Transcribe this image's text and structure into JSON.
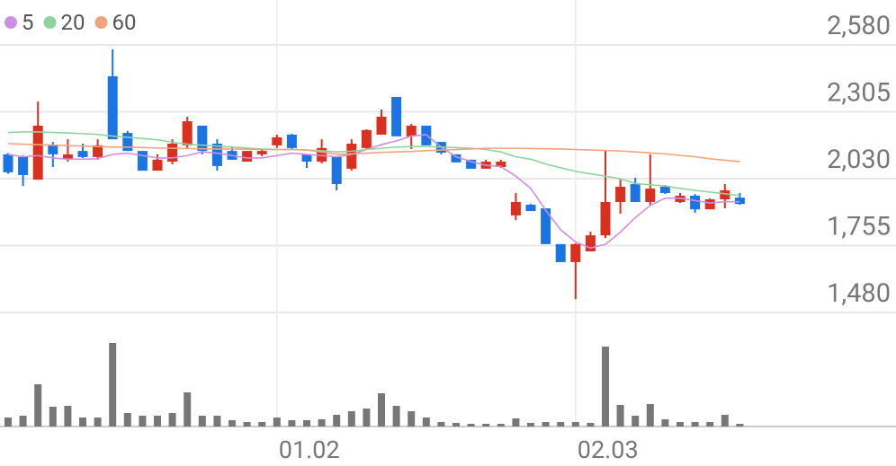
{
  "chart_data": {
    "type": "candlestick",
    "categories": [
      null,
      null,
      null,
      null,
      null,
      null,
      null,
      null,
      null,
      null,
      null,
      null,
      null,
      null,
      null,
      null,
      null,
      null,
      "01.02",
      null,
      null,
      null,
      null,
      null,
      null,
      null,
      null,
      null,
      null,
      null,
      null,
      null,
      null,
      null,
      null,
      null,
      null,
      null,
      "02.03",
      null,
      null,
      null,
      null,
      null,
      null,
      null,
      null,
      null,
      null,
      null
    ],
    "open": [
      2130,
      2119,
      2026,
      2167,
      2111,
      2144,
      2119,
      2451,
      2218,
      2144,
      2063,
      2100,
      2167,
      2248,
      2174,
      2144,
      2100,
      2130,
      2167,
      2211,
      2130,
      2100,
      2119,
      2071,
      2156,
      2211,
      2366,
      2204,
      2248,
      2181,
      2130,
      2108,
      2071,
      2078,
      1879,
      1923,
      1908,
      1761,
      1687,
      1731,
      1797,
      1934,
      2008,
      1934,
      1997,
      1934,
      1960,
      1904,
      1945,
      1952
    ],
    "high": [
      2135,
      2125,
      2347,
      2181,
      2192,
      2174,
      2192,
      2562,
      2226,
      2144,
      2130,
      2192,
      2285,
      2248,
      2192,
      2159,
      2144,
      2152,
      2211,
      2215,
      2130,
      2192,
      2119,
      2192,
      2233,
      2314,
      2366,
      2255,
      2248,
      2181,
      2130,
      2108,
      2108,
      2108,
      1971,
      1926,
      1908,
      1761,
      1764,
      1812,
      2145,
      2026,
      2034,
      2130,
      2004,
      1971,
      1967,
      1949,
      2008,
      1971
    ],
    "low": [
      2050,
      2000,
      2026,
      2078,
      2100,
      2115,
      2108,
      2192,
      2144,
      2063,
      2063,
      2089,
      2156,
      2130,
      2063,
      2108,
      2100,
      2122,
      2156,
      2152,
      2074,
      2093,
      1982,
      2063,
      2152,
      2211,
      2204,
      2152,
      2167,
      2130,
      2097,
      2071,
      2071,
      2074,
      1860,
      1897,
      1761,
      1687,
      1535,
      1731,
      1786,
      1886,
      1934,
      1923,
      1967,
      1930,
      1890,
      1904,
      1908,
      1923
    ],
    "close": [
      2056,
      2045,
      2248,
      2130,
      2130,
      2119,
      2167,
      2192,
      2144,
      2063,
      2108,
      2174,
      2266,
      2144,
      2082,
      2108,
      2144,
      2144,
      2200,
      2156,
      2100,
      2156,
      2008,
      2174,
      2230,
      2285,
      2204,
      2248,
      2167,
      2137,
      2097,
      2071,
      2100,
      2100,
      1934,
      1897,
      1761,
      1687,
      1761,
      1797,
      1934,
      1997,
      1934,
      1989,
      1971,
      1960,
      1904,
      1945,
      1982,
      1926
    ],
    "up_color": "#d9301f",
    "down_color": "#1b74e4",
    "series": [
      {
        "name": "5",
        "color": "#cf8ee6",
        "values": [
          2130,
          2120,
          2125,
          2115,
          2110,
          2110,
          2112,
          2130,
          2135,
          2125,
          2115,
          2115,
          2125,
          2140,
          2135,
          2125,
          2115,
          2115,
          2125,
          2135,
          2130,
          2125,
          2120,
          2130,
          2150,
          2170,
          2185,
          2205,
          2211,
          2160,
          2120,
          2100,
          2085,
          2080,
          2040,
          1990,
          1900,
          1820,
          1770,
          1745,
          1760,
          1810,
          1870,
          1920,
          1950,
          1950,
          1940,
          1930,
          1935,
          1935
        ]
      },
      {
        "name": "20",
        "color": "#8fd49e",
        "values": [
          2220,
          2222,
          2222,
          2220,
          2218,
          2215,
          2212,
          2205,
          2200,
          2195,
          2190,
          2180,
          2172,
          2168,
          2164,
          2160,
          2156,
          2152,
          2150,
          2150,
          2148,
          2145,
          2140,
          2143,
          2150,
          2155,
          2160,
          2162,
          2162,
          2160,
          2158,
          2155,
          2150,
          2140,
          2120,
          2110,
          2090,
          2075,
          2060,
          2050,
          2040,
          2030,
          2010,
          2005,
          2000,
          1990,
          1982,
          1975,
          1968,
          1960
        ]
      },
      {
        "name": "60",
        "color": "#f0a47e",
        "values": [
          2174,
          2172,
          2170,
          2168,
          2166,
          2164,
          2162,
          2160,
          2160,
          2158,
          2156,
          2155,
          2154,
          2153,
          2152,
          2152,
          2151,
          2150,
          2150,
          2150,
          2148,
          2140,
          2130,
          2132,
          2135,
          2138,
          2140,
          2142,
          2145,
          2148,
          2150,
          2152,
          2155,
          2155,
          2155,
          2154,
          2153,
          2152,
          2150,
          2148,
          2146,
          2144,
          2140,
          2136,
          2132,
          2126,
          2120,
          2112,
          2106,
          2100
        ]
      }
    ],
    "volume": {
      "color": "#777777",
      "ylim": [
        0,
        100
      ],
      "values": [
        10,
        12,
        47,
        22,
        23,
        10,
        10,
        93,
        15,
        12,
        12,
        15,
        38,
        12,
        12,
        7,
        5,
        5,
        10,
        7,
        7,
        8,
        13,
        17,
        20,
        37,
        23,
        17,
        10,
        5,
        4,
        3,
        3,
        3,
        9,
        4,
        5,
        5,
        5,
        4,
        89,
        24,
        12,
        25,
        8,
        5,
        5,
        5,
        13,
        3
      ]
    },
    "ylim": [
      1480,
      2580
    ],
    "yticks": [
      {
        "value": 2580,
        "label": "2,580"
      },
      {
        "value": 2305,
        "label": "2,305"
      },
      {
        "value": 2030,
        "label": "2,030"
      },
      {
        "value": 1755,
        "label": "1,755"
      },
      {
        "value": 1480,
        "label": "1,480"
      }
    ],
    "grid": true
  }
}
